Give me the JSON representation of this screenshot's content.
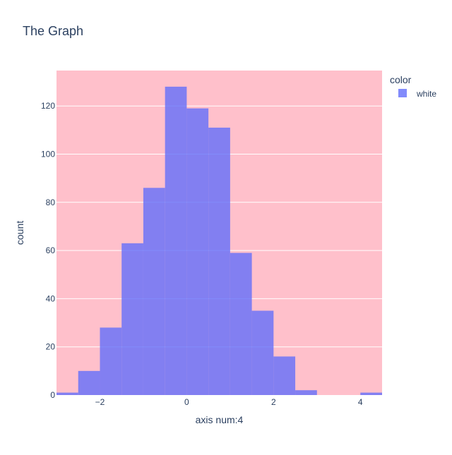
{
  "chart_data": {
    "type": "bar",
    "title": "The Graph",
    "xlabel": "axis num:4",
    "ylabel": "count",
    "bin_width": 0.5,
    "x": [
      -2.75,
      -2.25,
      -1.75,
      -1.25,
      -0.75,
      -0.25,
      0.25,
      0.75,
      1.25,
      1.75,
      2.25,
      2.75,
      3.25,
      3.75,
      4.25
    ],
    "series": [
      {
        "name": "white",
        "color": "#636efa",
        "values": [
          1,
          10,
          28,
          63,
          86,
          128,
          119,
          111,
          59,
          35,
          16,
          2,
          0,
          0,
          1
        ]
      }
    ],
    "xlim": [
      -3,
      4.5
    ],
    "ylim": [
      0,
      134.7
    ],
    "x_ticks": [
      -2,
      0,
      2,
      4
    ],
    "x_tick_labels": [
      "−2",
      "0",
      "2",
      "4"
    ],
    "y_ticks": [
      0,
      20,
      40,
      60,
      80,
      100,
      120
    ],
    "y_tick_labels": [
      "0",
      "20",
      "40",
      "60",
      "80",
      "100",
      "120"
    ],
    "grid": true,
    "plot_background": "#ffc0cb",
    "legend": {
      "title": "color",
      "position": "top-right",
      "entries": [
        "white"
      ]
    }
  }
}
